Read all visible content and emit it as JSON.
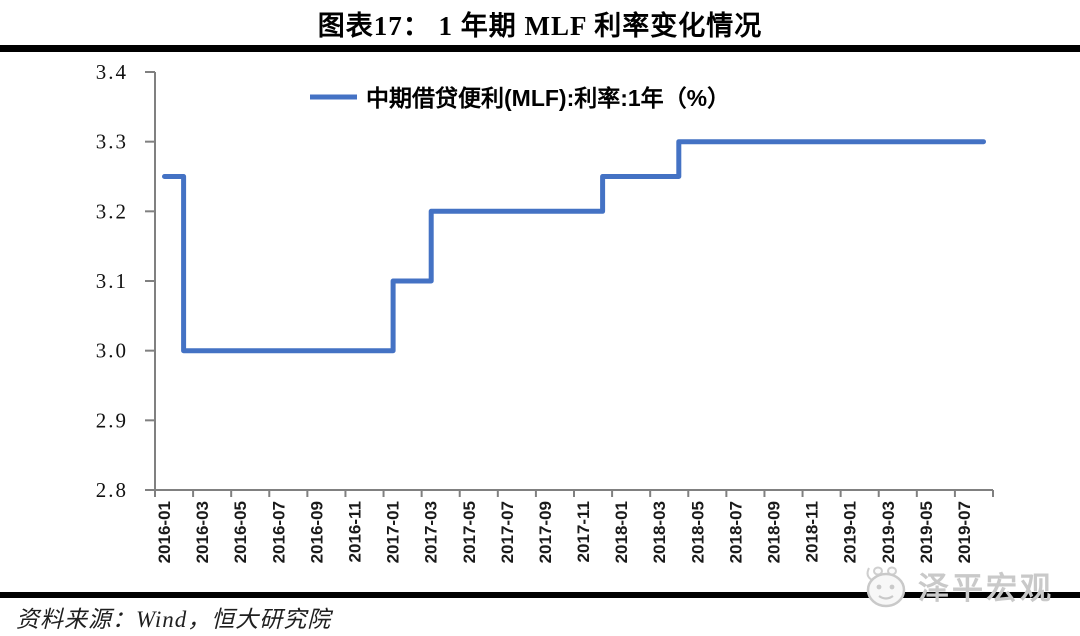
{
  "page": {
    "title": "图表17： 1 年期 MLF 利率变化情况"
  },
  "legend": {
    "label": "中期借贷便利(MLF):利率:1年（%）"
  },
  "footer": {
    "source": "资料来源：Wind，恒大研究院"
  },
  "watermark": {
    "text": "泽平宏观",
    "logo": "panda-face-icon"
  },
  "colors": {
    "line": "#4472C4",
    "axis": "#808080",
    "rule": "#000000",
    "watermark": "#c9c9c9",
    "title_text": "#000000"
  },
  "chart_data": {
    "type": "line",
    "step": true,
    "title": "图表17： 1 年期 MLF 利率变化情况",
    "xlabel": "",
    "ylabel": "",
    "ylim": [
      2.8,
      3.4
    ],
    "grid": false,
    "legend_position": "top-center",
    "y_ticks": [
      2.8,
      2.9,
      3.0,
      3.1,
      3.2,
      3.3,
      3.4
    ],
    "y_tick_labels": [
      "2.8",
      "2.9",
      "3.0",
      "3.1",
      "3.2",
      "3.3",
      "3.4"
    ],
    "x_tick_labels": [
      "2016-01",
      "2016-03",
      "2016-05",
      "2016-07",
      "2016-09",
      "2016-11",
      "2017-01",
      "2017-03",
      "2017-05",
      "2017-07",
      "2017-09",
      "2017-11",
      "2018-01",
      "2018-03",
      "2018-05",
      "2018-07",
      "2018-09",
      "2018-11",
      "2019-01",
      "2019-03",
      "2019-05",
      "2019-07"
    ],
    "series": [
      {
        "name": "中期借贷便利(MLF):利率:1年（%）",
        "color": "#4472C4",
        "x": [
          "2016-01",
          "2016-02",
          "2016-03",
          "2016-04",
          "2016-05",
          "2016-06",
          "2016-07",
          "2016-08",
          "2016-09",
          "2016-10",
          "2016-11",
          "2016-12",
          "2017-01",
          "2017-02",
          "2017-03",
          "2017-04",
          "2017-05",
          "2017-06",
          "2017-07",
          "2017-08",
          "2017-09",
          "2017-10",
          "2017-11",
          "2017-12",
          "2018-01",
          "2018-02",
          "2018-03",
          "2018-04",
          "2018-05",
          "2018-06",
          "2018-07",
          "2018-08",
          "2018-09",
          "2018-10",
          "2018-11",
          "2018-12",
          "2019-01",
          "2019-02",
          "2019-03",
          "2019-04",
          "2019-05",
          "2019-06",
          "2019-07",
          "2019-08"
        ],
        "values": [
          3.25,
          3.0,
          3.0,
          3.0,
          3.0,
          3.0,
          3.0,
          3.0,
          3.0,
          3.0,
          3.0,
          3.0,
          3.1,
          3.1,
          3.2,
          3.2,
          3.2,
          3.2,
          3.2,
          3.2,
          3.2,
          3.2,
          3.2,
          3.25,
          3.25,
          3.25,
          3.25,
          3.3,
          3.3,
          3.3,
          3.3,
          3.3,
          3.3,
          3.3,
          3.3,
          3.3,
          3.3,
          3.3,
          3.3,
          3.3,
          3.3,
          3.3,
          3.3,
          3.3
        ]
      }
    ],
    "source_note": "资料来源：Wind，恒大研究院"
  }
}
